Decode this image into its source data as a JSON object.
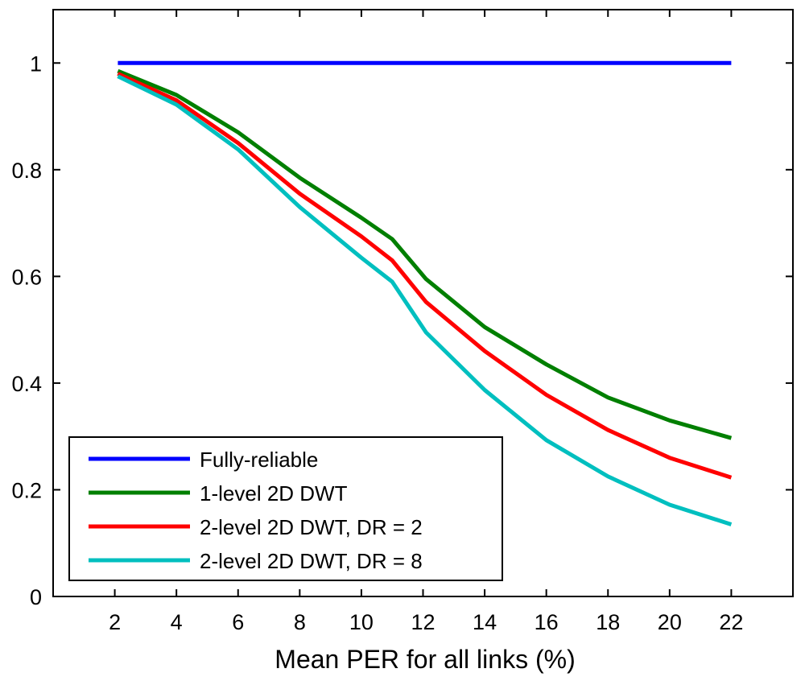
{
  "chart_data": {
    "type": "line",
    "title": "",
    "xlabel": "Mean PER for all links (%)",
    "ylabel": "",
    "xlim": [
      0,
      24
    ],
    "ylim": [
      0,
      1.1
    ],
    "x_ticks": [
      2,
      4,
      6,
      8,
      10,
      12,
      14,
      16,
      18,
      20,
      22
    ],
    "x_tick_labels": [
      "2",
      "4",
      "6",
      "8",
      "10",
      "12",
      "14",
      "16",
      "18",
      "20",
      "22"
    ],
    "y_ticks": [
      0,
      0.2,
      0.4,
      0.6,
      0.8,
      1
    ],
    "y_tick_labels": [
      "0",
      "0.2",
      "0.4",
      "0.6",
      "0.8",
      "1"
    ],
    "grid": false,
    "legend_position": "bottom-left",
    "series": [
      {
        "name": "Fully-reliable",
        "color": "#0000ff",
        "x": [
          2.1,
          22
        ],
        "y": [
          1.0,
          1.0
        ]
      },
      {
        "name": "1-level 2D DWT",
        "color": "#007f00",
        "x": [
          2.1,
          4,
          6,
          8,
          10,
          11,
          12.1,
          14,
          16,
          18,
          20,
          22
        ],
        "y": [
          0.985,
          0.94,
          0.87,
          0.785,
          0.71,
          0.67,
          0.595,
          0.505,
          0.435,
          0.373,
          0.33,
          0.297
        ]
      },
      {
        "name": "2-level 2D DWT, DR = 2",
        "color": "#ff0000",
        "x": [
          2.1,
          4,
          6,
          8,
          10,
          11,
          12.1,
          14,
          16,
          18,
          20,
          22
        ],
        "y": [
          0.98,
          0.93,
          0.85,
          0.755,
          0.675,
          0.63,
          0.552,
          0.46,
          0.378,
          0.312,
          0.26,
          0.223
        ]
      },
      {
        "name": "2-level 2D DWT, DR = 8",
        "color": "#00bfbf",
        "x": [
          2.1,
          4,
          6,
          8,
          10,
          11,
          12.1,
          14,
          16,
          18,
          20,
          22
        ],
        "y": [
          0.975,
          0.922,
          0.838,
          0.73,
          0.635,
          0.59,
          0.495,
          0.387,
          0.293,
          0.225,
          0.172,
          0.135
        ]
      }
    ]
  }
}
